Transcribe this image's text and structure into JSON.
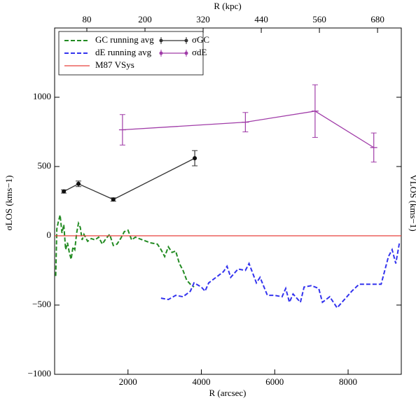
{
  "chart_data": {
    "type": "line",
    "xlabel": "R (arcsec)",
    "x2label": "R (kpc)",
    "ylabel": "σLOS (kms−1)",
    "y2label": "VLOS (kms−1)",
    "xlim": [
      0,
      9450
    ],
    "xticks": [
      2000,
      4000,
      6000,
      8000
    ],
    "x2lim": [
      13.5,
      729
    ],
    "x2ticks": [
      80,
      200,
      320,
      440,
      560,
      680
    ],
    "ylim": [
      -1000,
      1500
    ],
    "yticks": [
      {
        "value": -1000,
        "label": "−1000"
      },
      {
        "value": -500,
        "label": "−500"
      },
      0,
      500,
      1000
    ],
    "series": [
      {
        "name": "GC running avg",
        "kind": "line",
        "dashed": true,
        "color": "#228b22",
        "x": [
          30,
          60,
          100,
          150,
          200,
          250,
          300,
          350,
          400,
          450,
          500,
          550,
          600,
          650,
          700,
          750,
          800,
          900,
          1000,
          1100,
          1200,
          1300,
          1400,
          1500,
          1600,
          1700,
          1800,
          1900,
          2000,
          2100,
          2200,
          2400,
          2600,
          2800,
          2900,
          3000,
          3100,
          3200,
          3300,
          3400,
          3500,
          3600,
          3700,
          3800
        ],
        "values": [
          -290,
          50,
          100,
          150,
          20,
          80,
          -100,
          -50,
          -120,
          -170,
          -80,
          -100,
          20,
          90,
          60,
          -30,
          10,
          -40,
          -20,
          -30,
          -10,
          -60,
          -20,
          10,
          -70,
          -60,
          -20,
          30,
          40,
          -30,
          -10,
          -30,
          -50,
          -60,
          -100,
          -150,
          -80,
          -120,
          -110,
          -200,
          -250,
          -320,
          -350,
          -370
        ]
      },
      {
        "name": "dE running avg",
        "kind": "line",
        "dashed": true,
        "color": "#3333ee",
        "x": [
          2900,
          3100,
          3300,
          3500,
          3700,
          3800,
          4000,
          4100,
          4200,
          4400,
          4600,
          4700,
          4800,
          5000,
          5200,
          5300,
          5500,
          5600,
          5800,
          6000,
          6200,
          6300,
          6400,
          6500,
          6700,
          6800,
          7000,
          7200,
          7300,
          7500,
          7700,
          7900,
          8100,
          8300,
          8500,
          8700,
          8900,
          9000,
          9100,
          9200,
          9300,
          9400
        ],
        "values": [
          -450,
          -460,
          -430,
          -440,
          -400,
          -340,
          -370,
          -400,
          -340,
          -300,
          -260,
          -220,
          -300,
          -240,
          -250,
          -200,
          -340,
          -300,
          -430,
          -430,
          -440,
          -380,
          -480,
          -420,
          -480,
          -370,
          -360,
          -380,
          -480,
          -440,
          -520,
          -460,
          -400,
          -350,
          -350,
          -350,
          -350,
          -250,
          -150,
          -100,
          -200,
          -50
        ]
      },
      {
        "name": "M87 VSys",
        "kind": "hline",
        "color": "#e8403c",
        "value": 0
      },
      {
        "name": "σGC",
        "kind": "errorbar",
        "color": "#333333",
        "x": [
          250,
          650,
          1600,
          3820
        ],
        "values": [
          320,
          375,
          262,
          560
        ],
        "errors": [
          12,
          20,
          12,
          55
        ]
      },
      {
        "name": "σdE",
        "kind": "errorbar",
        "color": "#a03ca8",
        "x": [
          1850,
          5200,
          7100,
          8700
        ],
        "values": [
          765,
          820,
          900,
          637
        ],
        "errors": [
          110,
          70,
          190,
          105
        ]
      }
    ]
  }
}
